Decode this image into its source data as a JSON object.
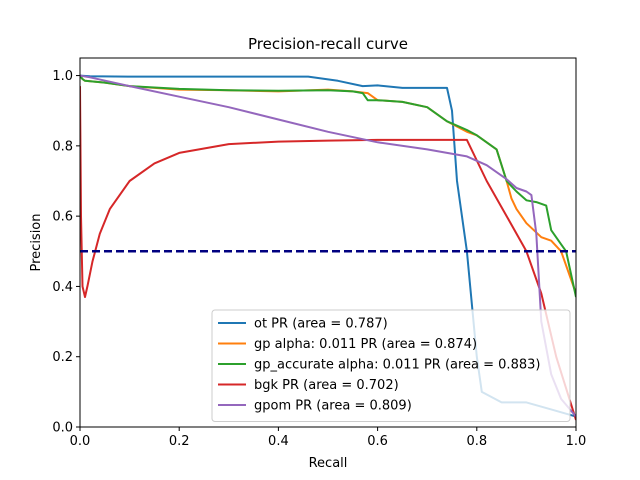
{
  "chart_data": {
    "type": "line",
    "title": "Precision-recall curve",
    "xlabel": "Recall",
    "ylabel": "Precision",
    "xlim": [
      0.0,
      1.0
    ],
    "ylim": [
      0.0,
      1.05
    ],
    "xticks": [
      "0.0",
      "0.2",
      "0.4",
      "0.6",
      "0.8",
      "1.0"
    ],
    "yticks": [
      "0.0",
      "0.2",
      "0.4",
      "0.6",
      "0.8",
      "1.0"
    ],
    "grid": false,
    "legend_position": "lower-right",
    "baseline": {
      "y": 0.5,
      "color": "#000080",
      "style": "dashed"
    },
    "series": [
      {
        "name": "ot PR (area = 0.787)",
        "color": "#1f77b4",
        "x": [
          0.0,
          0.02,
          0.1,
          0.2,
          0.3,
          0.4,
          0.46,
          0.52,
          0.57,
          0.6,
          0.65,
          0.7,
          0.74,
          0.75,
          0.76,
          0.78,
          0.8,
          0.81,
          0.85,
          0.9,
          0.95,
          1.0
        ],
        "y": [
          1.0,
          0.998,
          0.997,
          0.997,
          0.997,
          0.997,
          0.997,
          0.985,
          0.97,
          0.972,
          0.965,
          0.965,
          0.965,
          0.9,
          0.7,
          0.5,
          0.2,
          0.1,
          0.07,
          0.07,
          0.05,
          0.03
        ]
      },
      {
        "name": "gp alpha: 0.011 PR (area = 0.874)",
        "color": "#ff7f0e",
        "x": [
          0.0,
          0.005,
          0.01,
          0.05,
          0.1,
          0.2,
          0.3,
          0.4,
          0.5,
          0.55,
          0.58,
          0.6,
          0.65,
          0.7,
          0.74,
          0.78,
          0.8,
          0.84,
          0.86,
          0.87,
          0.88,
          0.9,
          0.93,
          0.95,
          0.97,
          1.0
        ],
        "y": [
          1.0,
          0.99,
          0.985,
          0.98,
          0.97,
          0.96,
          0.958,
          0.955,
          0.96,
          0.955,
          0.95,
          0.93,
          0.925,
          0.91,
          0.87,
          0.84,
          0.83,
          0.79,
          0.7,
          0.65,
          0.62,
          0.58,
          0.54,
          0.53,
          0.5,
          0.38
        ]
      },
      {
        "name": "gp_accurate alpha: 0.011 PR (area = 0.883)",
        "color": "#2ca02c",
        "x": [
          0.0,
          0.005,
          0.01,
          0.05,
          0.1,
          0.2,
          0.3,
          0.4,
          0.5,
          0.55,
          0.57,
          0.58,
          0.6,
          0.65,
          0.7,
          0.74,
          0.78,
          0.8,
          0.84,
          0.86,
          0.88,
          0.9,
          0.92,
          0.94,
          0.95,
          0.97,
          0.98,
          1.0
        ],
        "y": [
          1.0,
          0.99,
          0.985,
          0.98,
          0.97,
          0.962,
          0.958,
          0.957,
          0.958,
          0.955,
          0.95,
          0.93,
          0.93,
          0.925,
          0.91,
          0.87,
          0.845,
          0.83,
          0.79,
          0.7,
          0.67,
          0.645,
          0.64,
          0.63,
          0.56,
          0.52,
          0.5,
          0.37
        ]
      },
      {
        "name": "bgk PR (area = 0.702)",
        "color": "#d62728",
        "x": [
          0.0,
          0.002,
          0.005,
          0.01,
          0.015,
          0.025,
          0.04,
          0.06,
          0.1,
          0.15,
          0.2,
          0.3,
          0.4,
          0.5,
          0.6,
          0.7,
          0.78,
          0.82,
          0.86,
          0.9,
          0.93,
          0.96,
          1.0
        ],
        "y": [
          0.97,
          0.6,
          0.4,
          0.37,
          0.4,
          0.47,
          0.55,
          0.62,
          0.7,
          0.75,
          0.78,
          0.805,
          0.812,
          0.815,
          0.817,
          0.817,
          0.817,
          0.7,
          0.6,
          0.5,
          0.38,
          0.2,
          0.02
        ]
      },
      {
        "name": "gpom PR (area = 0.809)",
        "color": "#9467bd",
        "x": [
          0.0,
          0.02,
          0.1,
          0.2,
          0.3,
          0.4,
          0.5,
          0.6,
          0.7,
          0.78,
          0.82,
          0.86,
          0.88,
          0.9,
          0.91,
          0.92,
          0.93,
          0.95,
          0.97,
          1.0
        ],
        "y": [
          1.0,
          0.995,
          0.97,
          0.94,
          0.91,
          0.875,
          0.84,
          0.81,
          0.79,
          0.77,
          0.745,
          0.705,
          0.68,
          0.67,
          0.66,
          0.55,
          0.3,
          0.15,
          0.08,
          0.03
        ]
      }
    ]
  }
}
